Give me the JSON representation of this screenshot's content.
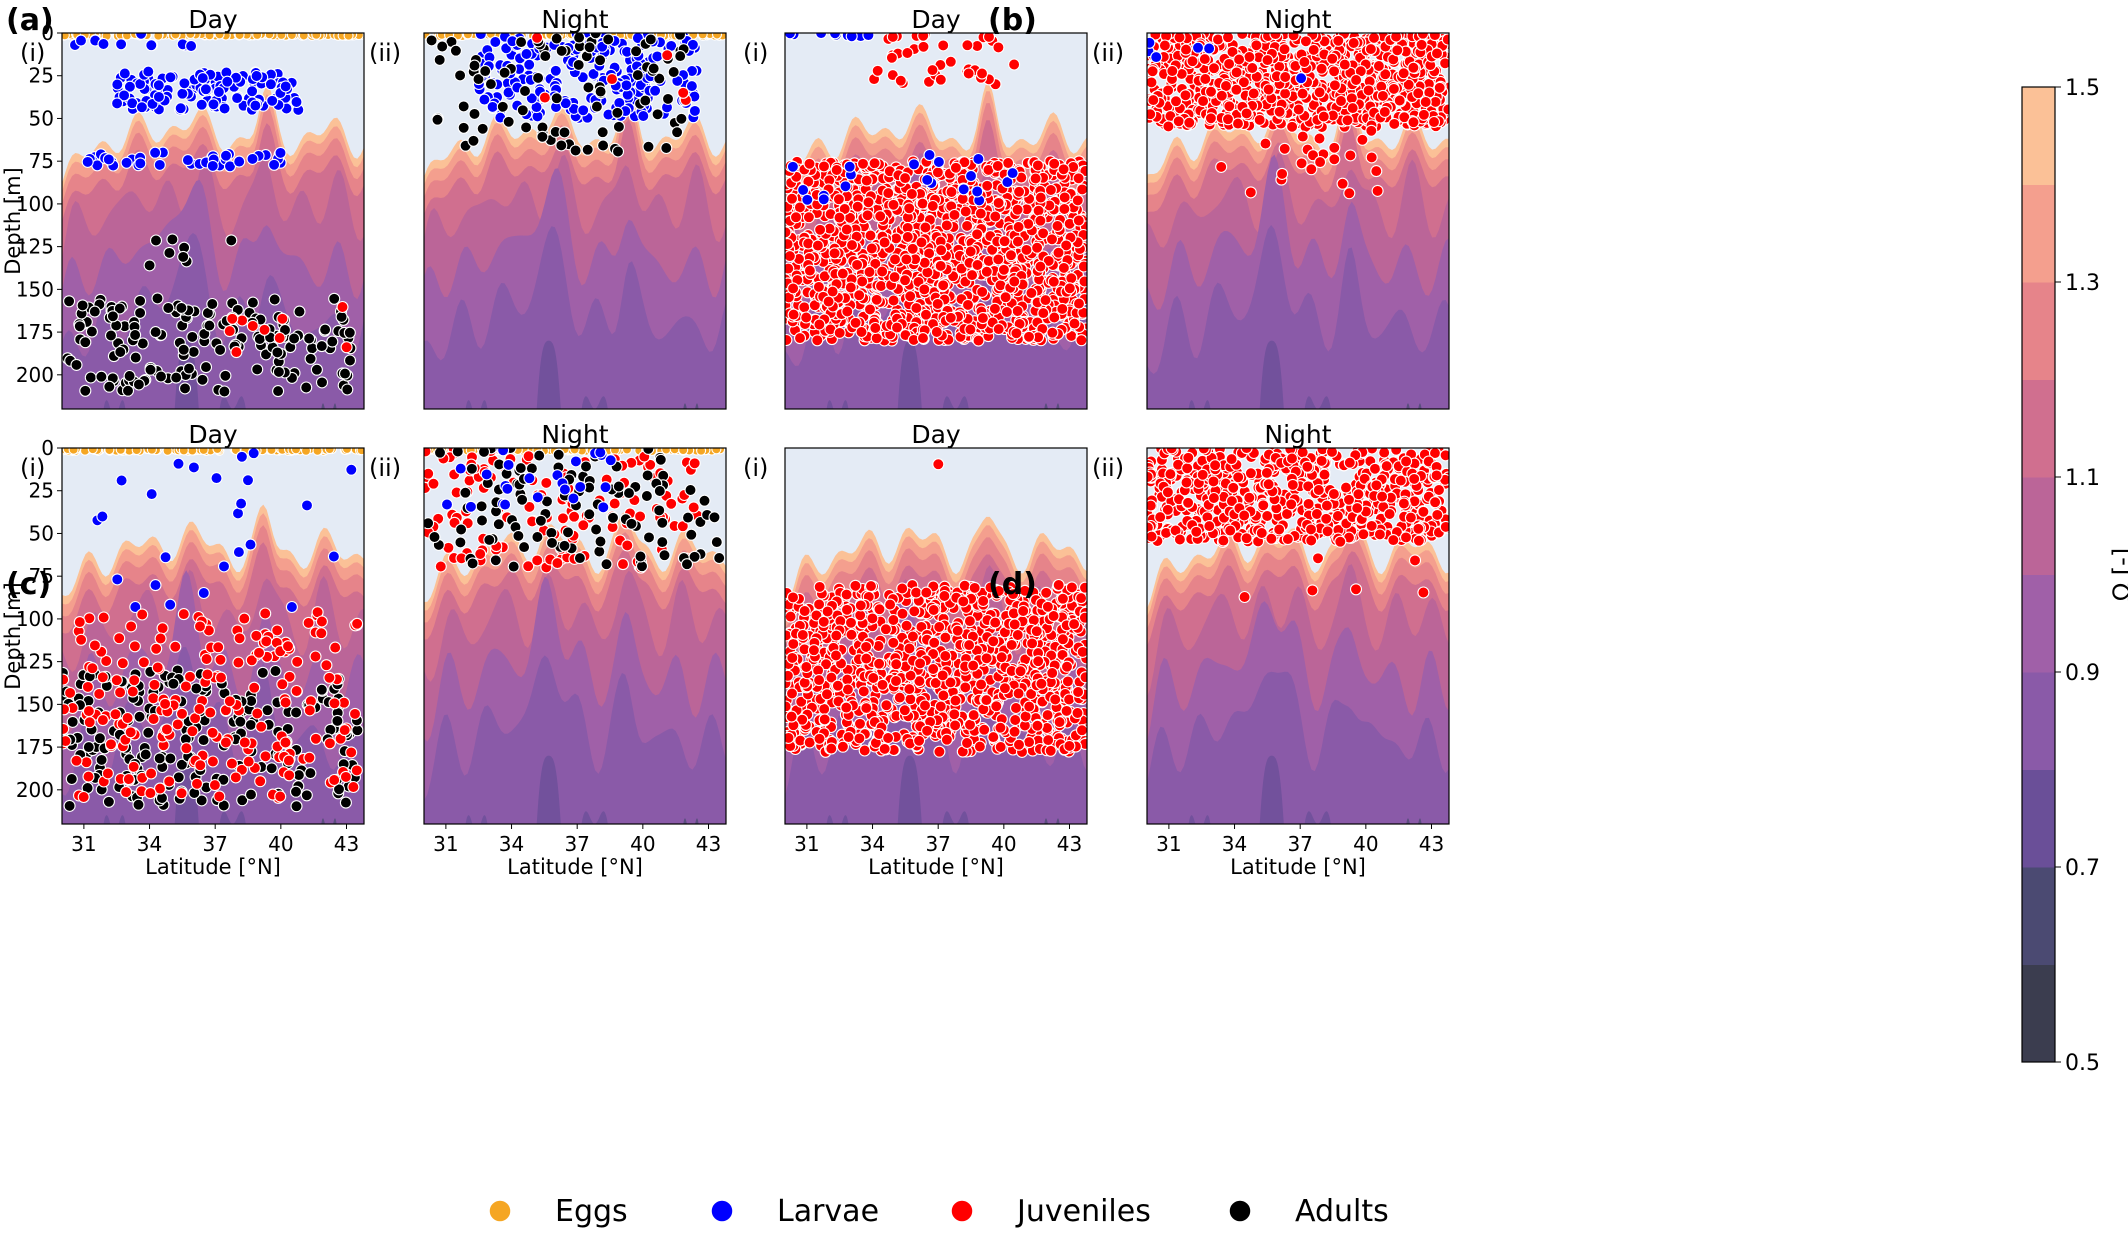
{
  "figure": {
    "panel_letters": [
      "(a)",
      "(b)",
      "(c)",
      "(d)"
    ],
    "subpanel_labels": [
      "(i)",
      "(ii)"
    ],
    "column_titles": [
      "Day",
      "Night"
    ]
  },
  "axes": {
    "ylabel": "Depth [m]",
    "xlabel": "Latitude [°N]",
    "yticks": [
      "0",
      "25",
      "50",
      "75",
      "100",
      "125",
      "150",
      "175",
      "200"
    ],
    "xticks": [
      "31",
      "34",
      "37",
      "40",
      "43"
    ]
  },
  "colorbar": {
    "label": "Ω [-]",
    "ticks": [
      "0.5",
      "0.7",
      "0.9",
      "1.1",
      "1.3",
      "1.5"
    ],
    "bands": [
      "#3b3d4f",
      "#4b4a72",
      "#6a4f98",
      "#8a5aa8",
      "#a060a8",
      "#bb6598",
      "#d06f8f",
      "#e6848a",
      "#f49f8e",
      "#fbc197"
    ]
  },
  "legend": {
    "items": [
      {
        "label": "Eggs",
        "color": "#f5a623"
      },
      {
        "label": "Larvae",
        "color": "#0000ff"
      },
      {
        "label": "Juveniles",
        "color": "#ff0000"
      },
      {
        "label": "Adults",
        "color": "#000000"
      }
    ]
  },
  "chart_data": {
    "type": "scatter",
    "x_range": [
      30.0,
      43.8
    ],
    "y_range": [
      220,
      0
    ],
    "background_color_name": "contour of Ω (saturation state) with depth and latitude",
    "panels": [
      {
        "id": "a-i",
        "panel": "(a)",
        "sub": "(i)",
        "period": "Day",
        "groups": [
          {
            "stage": "Eggs",
            "x": [
              30.0,
              43.8
            ],
            "depth": [
              0,
              1
            ],
            "n": 120
          },
          {
            "stage": "Larvae",
            "x": [
              32.5,
              40.8
            ],
            "depth": [
              22,
              45
            ],
            "n": 130
          },
          {
            "stage": "Larvae",
            "x": [
              31,
              40
            ],
            "depth": [
              70,
              78
            ],
            "n": 40
          },
          {
            "stage": "Larvae",
            "x": [
              30.1,
              38.5
            ],
            "depth": [
              0,
              10
            ],
            "n": 12
          },
          {
            "stage": "Adults",
            "x": [
              30.2,
              43.2
            ],
            "depth": [
              155,
              210
            ],
            "n": 170
          },
          {
            "stage": "Adults",
            "x": [
              34,
              39
            ],
            "depth": [
              120,
              140
            ],
            "n": 8
          },
          {
            "stage": "Juveniles",
            "x": [
              36,
              43.5
            ],
            "depth": [
              160,
              200
            ],
            "n": 10
          }
        ]
      },
      {
        "id": "a-ii",
        "panel": "(a)",
        "sub": "(ii)",
        "period": "Night",
        "groups": [
          {
            "stage": "Eggs",
            "x": [
              30.0,
              43.8
            ],
            "depth": [
              0,
              1
            ],
            "n": 120
          },
          {
            "stage": "Larvae",
            "x": [
              32.5,
              42.5
            ],
            "depth": [
              0,
              50
            ],
            "n": 220
          },
          {
            "stage": "Adults",
            "x": [
              30.0,
              42.0
            ],
            "depth": [
              0,
              70
            ],
            "n": 90
          },
          {
            "stage": "Juveniles",
            "x": [
              34,
              43.5
            ],
            "depth": [
              0,
              40
            ],
            "n": 6
          }
        ]
      },
      {
        "id": "b-i",
        "panel": "(b)",
        "sub": "(i)",
        "period": "Day",
        "groups": [
          {
            "stage": "Larvae",
            "x": [
              30.0,
              34.0
            ],
            "depth": [
              0,
              2
            ],
            "n": 10
          },
          {
            "stage": "Juveniles",
            "x": [
              30.0,
              43.8
            ],
            "depth": [
              75,
              180
            ],
            "n": 1400
          },
          {
            "stage": "Juveniles",
            "x": [
              34,
              41
            ],
            "depth": [
              0,
              30
            ],
            "n": 40
          },
          {
            "stage": "Larvae",
            "x": [
              30,
              41
            ],
            "depth": [
              70,
              100
            ],
            "n": 20
          }
        ]
      },
      {
        "id": "b-ii",
        "panel": "(b)",
        "sub": "(ii)",
        "period": "Night",
        "groups": [
          {
            "stage": "Juveniles",
            "x": [
              30.0,
              43.8
            ],
            "depth": [
              0,
              55
            ],
            "n": 900
          },
          {
            "stage": "Juveniles",
            "x": [
              33,
              41
            ],
            "depth": [
              55,
              95
            ],
            "n": 25
          },
          {
            "stage": "Larvae",
            "x": [
              30,
              38
            ],
            "depth": [
              0,
              30
            ],
            "n": 6
          }
        ]
      },
      {
        "id": "c-i",
        "panel": "(c)",
        "sub": "(i)",
        "period": "Day",
        "groups": [
          {
            "stage": "Eggs",
            "x": [
              30.0,
              43.8
            ],
            "depth": [
              0,
              1
            ],
            "n": 120
          },
          {
            "stage": "Larvae",
            "x": [
              31.5,
              43.5
            ],
            "depth": [
              0,
              100
            ],
            "n": 25
          },
          {
            "stage": "Adults",
            "x": [
              30.0,
              43.5
            ],
            "depth": [
              130,
              210
            ],
            "n": 200
          },
          {
            "stage": "Juveniles",
            "x": [
              30.0,
              43.5
            ],
            "depth": [
              95,
              205
            ],
            "n": 220
          }
        ]
      },
      {
        "id": "c-ii",
        "panel": "(c)",
        "sub": "(ii)",
        "period": "Night",
        "groups": [
          {
            "stage": "Eggs",
            "x": [
              30.0,
              43.8
            ],
            "depth": [
              0,
              1
            ],
            "n": 120
          },
          {
            "stage": "Juveniles",
            "x": [
              30.0,
              42.5
            ],
            "depth": [
              0,
              70
            ],
            "n": 140
          },
          {
            "stage": "Adults",
            "x": [
              30.0,
              43.5
            ],
            "depth": [
              0,
              70
            ],
            "n": 110
          },
          {
            "stage": "Larvae",
            "x": [
              31.0,
              39.0
            ],
            "depth": [
              0,
              35
            ],
            "n": 25
          }
        ]
      },
      {
        "id": "d-i",
        "panel": "(d)",
        "sub": "(i)",
        "period": "Day",
        "groups": [
          {
            "stage": "Juveniles",
            "x": [
              30.0,
              43.8
            ],
            "depth": [
              80,
              178
            ],
            "n": 1100
          },
          {
            "stage": "Juveniles",
            "x": [
              37,
              37.1
            ],
            "depth": [
              9,
              10
            ],
            "n": 1
          }
        ]
      },
      {
        "id": "d-ii",
        "panel": "(d)",
        "sub": "(ii)",
        "period": "Night",
        "groups": [
          {
            "stage": "Juveniles",
            "x": [
              30.0,
              43.8
            ],
            "depth": [
              0,
              55
            ],
            "n": 650
          },
          {
            "stage": "Juveniles",
            "x": [
              33,
              43.6
            ],
            "depth": [
              60,
              95
            ],
            "n": 6
          }
        ]
      }
    ]
  }
}
